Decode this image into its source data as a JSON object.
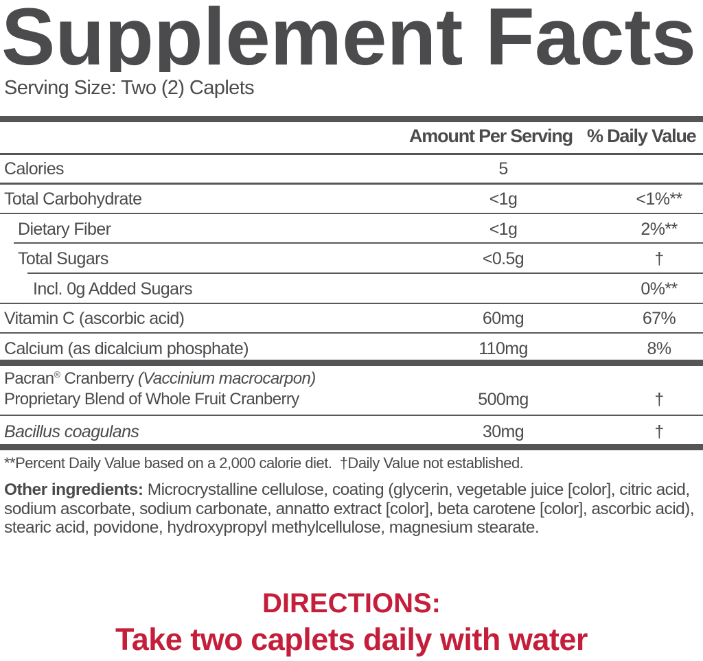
{
  "title": "Supplement Facts",
  "serving_size": "Serving Size: Two (2) Caplets",
  "header": {
    "amount": "Amount Per Serving",
    "daily_value": "% Daily Value"
  },
  "rows": [
    {
      "label": "Calories",
      "amount": "5",
      "dv": ""
    },
    {
      "label": "Total Carbohydrate",
      "amount": "<1g",
      "dv": "<1%**"
    },
    {
      "label": "Dietary Fiber",
      "amount": "<1g",
      "dv": "2%**"
    },
    {
      "label": "Total Sugars",
      "amount": "<0.5g",
      "dv": "†"
    },
    {
      "label": "Incl. 0g Added Sugars",
      "amount": "",
      "dv": "0%**"
    },
    {
      "label": "Vitamin C (ascorbic acid)",
      "amount": "60mg",
      "dv": "67%"
    },
    {
      "label": "Calcium (as dicalcium phosphate)",
      "amount": "110mg",
      "dv": "8%"
    }
  ],
  "blend": {
    "name": "Pacran",
    "reg_mark": "®",
    "name_rest": " Cranberry ",
    "latin": "(Vaccinium macrocarpon)",
    "line2": "Proprietary Blend of Whole Fruit Cranberry",
    "amount": "500mg",
    "dv": "†"
  },
  "bacillus": {
    "label": "Bacillus coagulans",
    "amount": "30mg",
    "dv": "†"
  },
  "footnote": "**Percent Daily Value based on a 2,000 calorie diet.  †Daily Value not established.",
  "other_ingredients": {
    "label": "Other ingredients:",
    "text": " Microcrystalline cellulose, coating (glycerin, vegetable juice [color], citric acid, sodium ascorbate, sodium carbonate, annatto extract [color], beta carotene [color], ascorbic acid), stearic acid, povidone, hydroxypropyl methylcellulose, magnesium stearate."
  },
  "directions": {
    "heading": "DIRECTIONS:",
    "text": "Take two caplets daily with water"
  },
  "colors": {
    "text": "#4b4b4d",
    "accent": "#c41e3a",
    "rule": "#555557"
  }
}
